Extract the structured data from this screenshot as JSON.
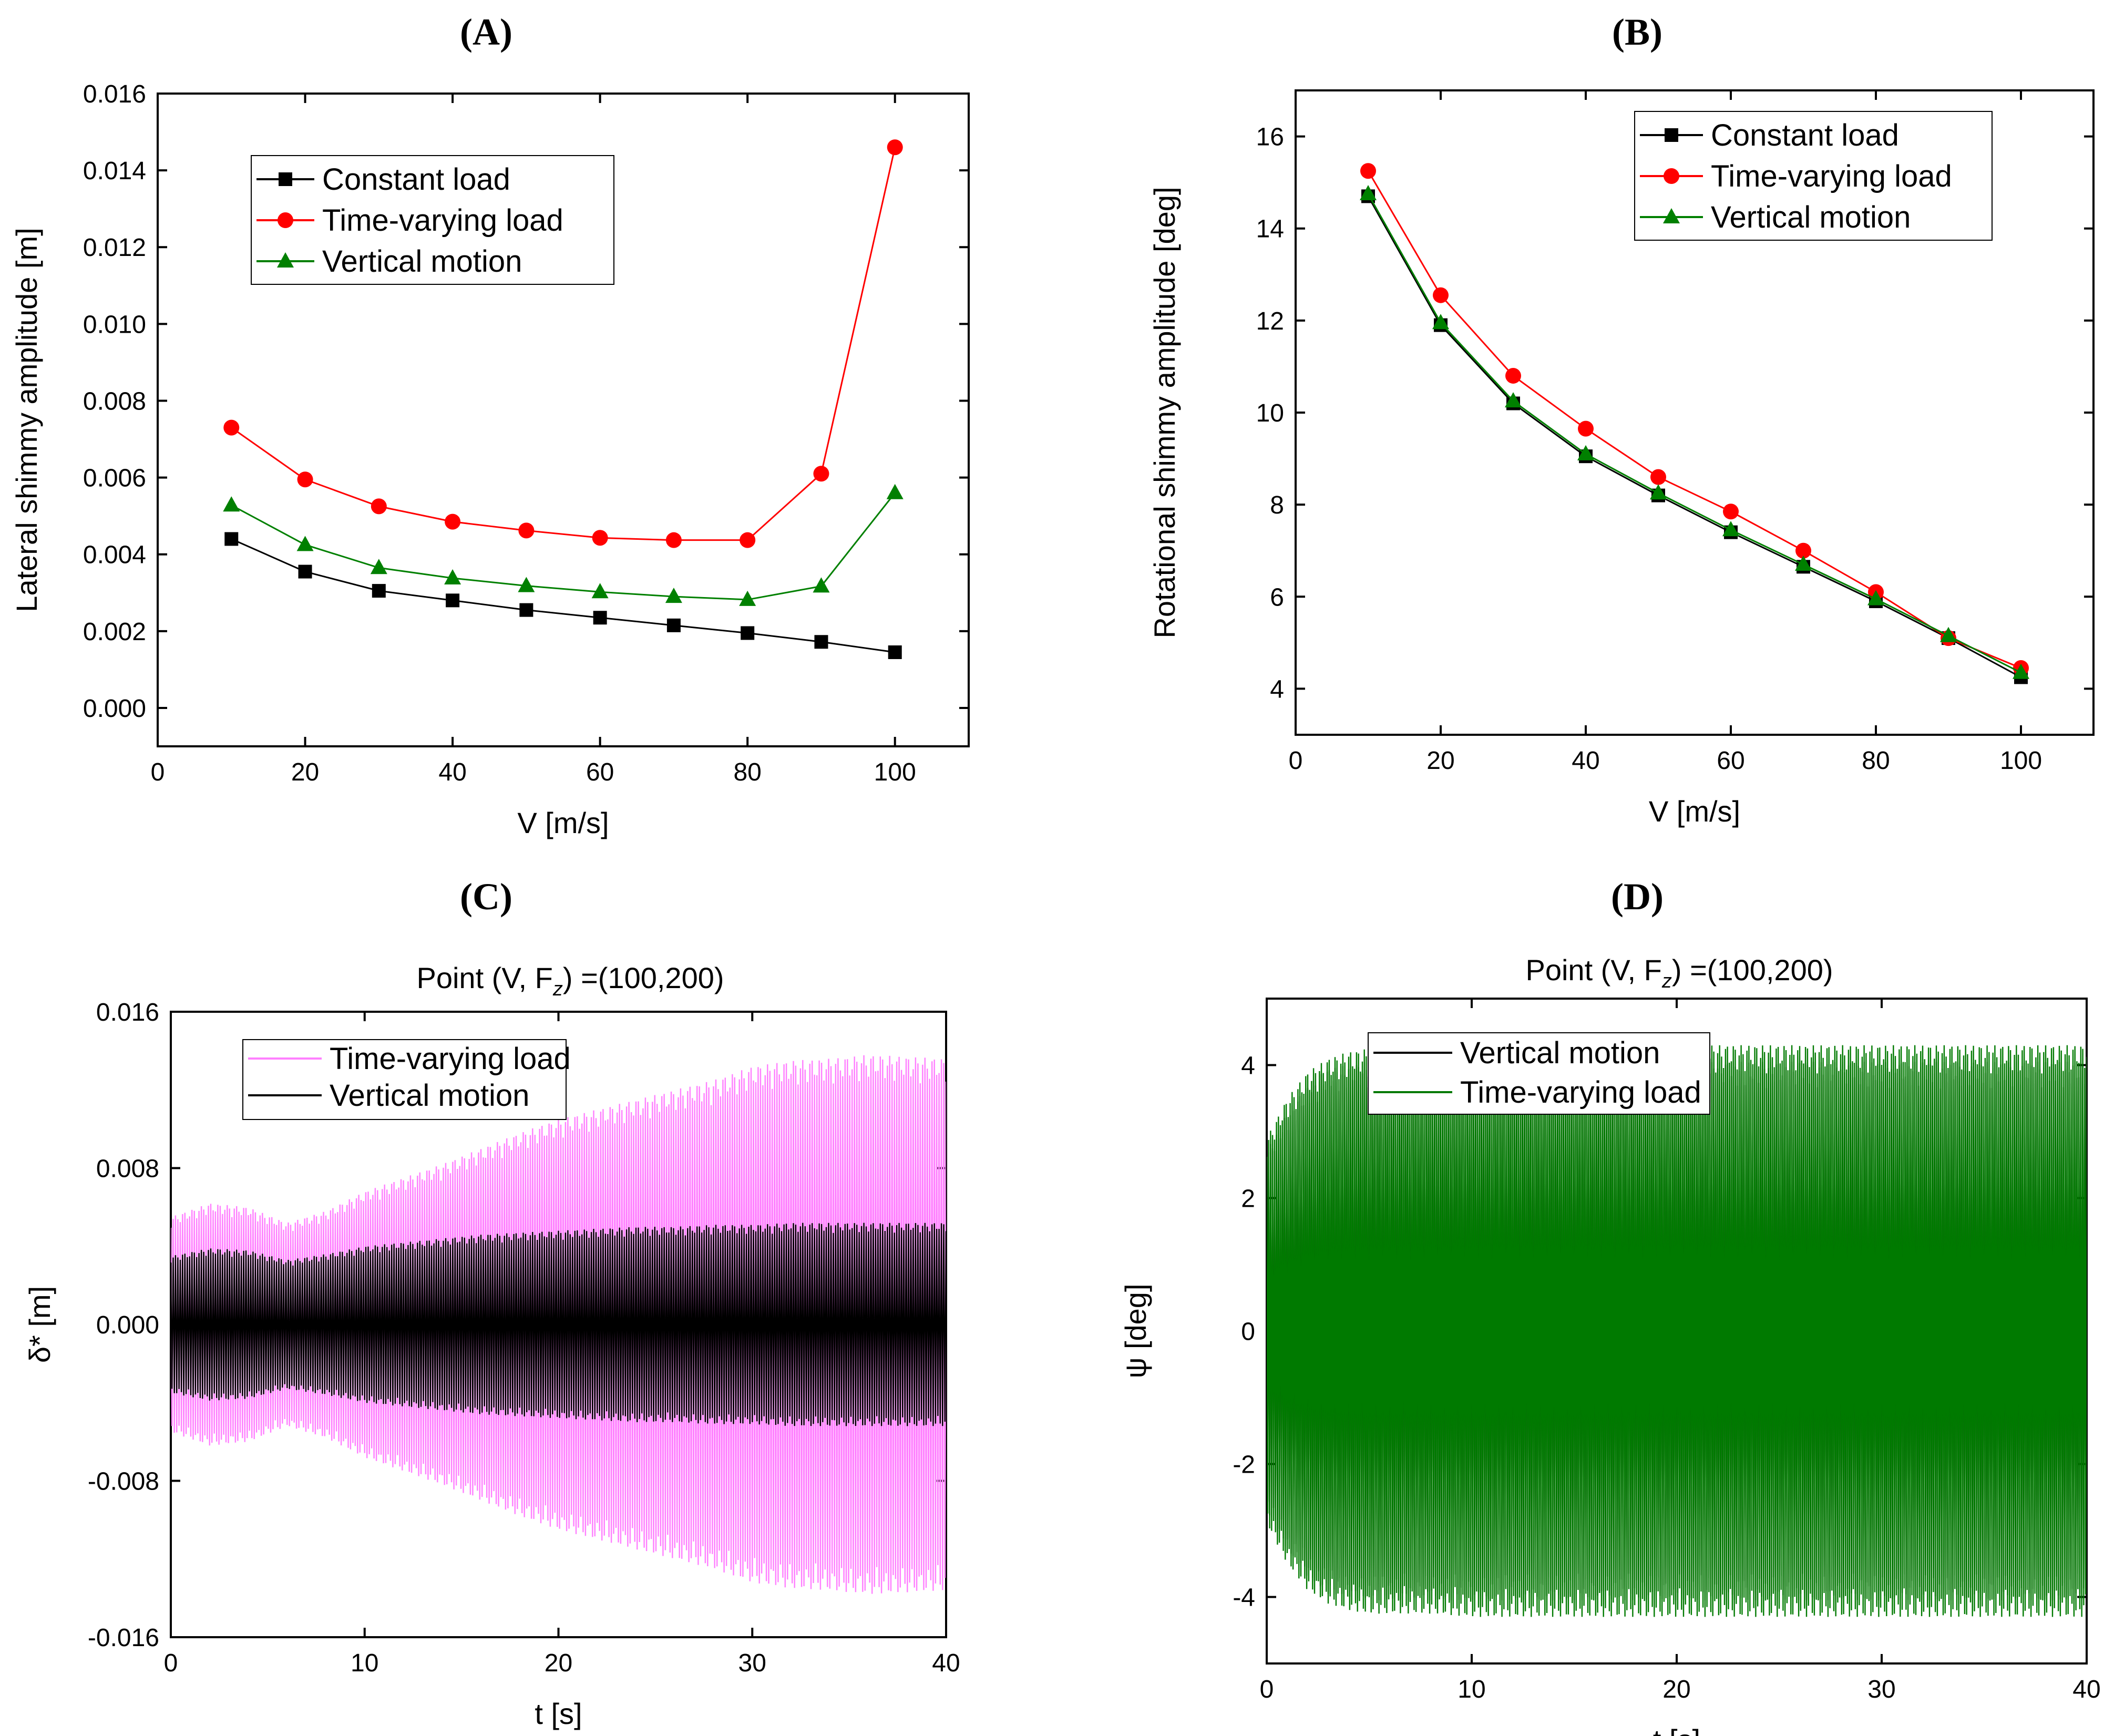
{
  "panels": [
    {
      "label": "(A)"
    },
    {
      "label": "(B)"
    },
    {
      "label": "(C)",
      "title": "Point  (V, F",
      "title_sub": "z",
      "title_tail": ") =(100,200)"
    },
    {
      "label": "(D)",
      "title": "Point  (V, F",
      "title_sub": "z",
      "title_tail": ") =(100,200)"
    }
  ],
  "colors": {
    "constant": "#000000",
    "time_varying": "#ff0000",
    "vertical": "#008000",
    "pink": "#ff80ff",
    "dark_green": "#007a00"
  },
  "chart_data": [
    {
      "type": "line",
      "xlabel": "V  [m/s]",
      "ylabel": "Lateral shimmy amplitude [m]",
      "xlim": [
        0,
        110
      ],
      "ylim": [
        -0.001,
        0.016
      ],
      "xticks": [
        0,
        20,
        40,
        60,
        80,
        100
      ],
      "yticks": [
        0,
        0.002,
        0.004,
        0.006,
        0.008,
        0.01,
        0.012,
        0.014,
        0.016
      ],
      "ytick_labels": [
        "0.000",
        "0.002",
        "0.004",
        "0.006",
        "0.008",
        "0.010",
        "0.012",
        "0.014",
        "0.016"
      ],
      "x": [
        10,
        20,
        30,
        40,
        50,
        60,
        70,
        80,
        90,
        100
      ],
      "series": [
        {
          "name": "Constant load",
          "marker": "square",
          "color": "#000000",
          "values": [
            0.0044,
            0.00355,
            0.00305,
            0.0028,
            0.00255,
            0.00235,
            0.00215,
            0.00195,
            0.00172,
            0.00145
          ]
        },
        {
          "name": "Time-varying load",
          "marker": "circle",
          "color": "#ff0000",
          "values": [
            0.0073,
            0.00595,
            0.00525,
            0.00485,
            0.00462,
            0.00443,
            0.00437,
            0.00437,
            0.0061,
            0.0146
          ]
        },
        {
          "name": "Vertical motion",
          "marker": "triangle",
          "color": "#008000",
          "values": [
            0.00528,
            0.00425,
            0.00365,
            0.00338,
            0.00318,
            0.00302,
            0.0029,
            0.00282,
            0.00317,
            0.0056
          ]
        }
      ]
    },
    {
      "type": "line",
      "xlabel": "V  [m/s]",
      "ylabel": "Rotational shimmy amplitude [deg]",
      "xlim": [
        0,
        110
      ],
      "ylim": [
        3,
        17
      ],
      "xticks": [
        0,
        20,
        40,
        60,
        80,
        100
      ],
      "yticks": [
        4,
        6,
        8,
        10,
        12,
        14,
        16
      ],
      "ytick_labels": [
        "4",
        "6",
        "8",
        "10",
        "12",
        "14",
        "16"
      ],
      "x": [
        10,
        20,
        30,
        40,
        50,
        60,
        70,
        80,
        90,
        100
      ],
      "series": [
        {
          "name": "Constant load",
          "marker": "square",
          "color": "#000000",
          "values": [
            14.7,
            11.9,
            10.2,
            9.05,
            8.2,
            7.4,
            6.65,
            5.9,
            5.1,
            4.25
          ]
        },
        {
          "name": "Time-varying load",
          "marker": "circle",
          "color": "#ff0000",
          "values": [
            15.25,
            12.55,
            10.8,
            9.65,
            8.6,
            7.85,
            7.0,
            6.1,
            5.1,
            4.45
          ]
        },
        {
          "name": "Vertical motion",
          "marker": "triangle",
          "color": "#008000",
          "values": [
            14.75,
            11.95,
            10.25,
            9.1,
            8.25,
            7.45,
            6.7,
            5.95,
            5.15,
            4.35
          ]
        }
      ]
    },
    {
      "type": "area",
      "xlabel": "t  [s]",
      "ylabel": "δ* [m]",
      "xlim": [
        0,
        40
      ],
      "ylim": [
        -0.016,
        0.016
      ],
      "xticks": [
        0,
        10,
        20,
        30,
        40
      ],
      "yticks": [
        -0.016,
        -0.008,
        0,
        0.008,
        0.016
      ],
      "ytick_labels": [
        "-0.016",
        "-0.008",
        "0.000",
        "0.008",
        "0.016"
      ],
      "series": [
        {
          "name": "Time-varying load",
          "color": "#ff80ff",
          "envelope_t": [
            0,
            2,
            4,
            6,
            8,
            10,
            12,
            14,
            16,
            18,
            20,
            22,
            24,
            26,
            28,
            30,
            32,
            34,
            36,
            38,
            40
          ],
          "envelope_amp": [
            0.0055,
            0.0062,
            0.006,
            0.0052,
            0.0058,
            0.0068,
            0.0075,
            0.0082,
            0.009,
            0.0098,
            0.0105,
            0.011,
            0.0115,
            0.012,
            0.0125,
            0.0132,
            0.0135,
            0.0136,
            0.0138,
            0.0137,
            0.0136
          ]
        },
        {
          "name": "Vertical motion",
          "color": "#000000",
          "envelope_t": [
            0,
            2,
            4,
            6,
            8,
            10,
            12,
            14,
            16,
            18,
            20,
            22,
            24,
            26,
            28,
            30,
            32,
            34,
            36,
            38,
            40
          ],
          "envelope_amp": [
            0.0035,
            0.0039,
            0.0038,
            0.0033,
            0.0036,
            0.004,
            0.0042,
            0.0044,
            0.0046,
            0.0047,
            0.0048,
            0.0049,
            0.005,
            0.005,
            0.0051,
            0.0051,
            0.0052,
            0.0052,
            0.0052,
            0.0052,
            0.0052
          ]
        }
      ]
    },
    {
      "type": "area",
      "xlabel": "t  [s]",
      "ylabel": "ψ [deg]",
      "xlim": [
        0,
        40
      ],
      "ylim": [
        -5,
        5
      ],
      "xticks": [
        0,
        10,
        20,
        30,
        40
      ],
      "yticks": [
        -4,
        -2,
        0,
        2,
        4
      ],
      "ytick_labels": [
        "-4",
        "-2",
        "0",
        "2",
        "4"
      ],
      "series": [
        {
          "name": "Vertical motion",
          "color": "#000000",
          "envelope_t": [
            0,
            1,
            2,
            3,
            4,
            5,
            6,
            8,
            10,
            15,
            20,
            25,
            30,
            35,
            40
          ],
          "envelope_amp": [
            2.7,
            3.3,
            3.7,
            3.95,
            4.0,
            4.05,
            4.05,
            4.05,
            4.05,
            4.05,
            4.05,
            4.05,
            4.05,
            4.05,
            4.05
          ]
        },
        {
          "name": "Time-varying load",
          "color": "#007a00",
          "envelope_t": [
            0,
            1,
            2,
            3,
            4,
            5,
            6,
            8,
            10,
            15,
            20,
            25,
            30,
            35,
            40
          ],
          "envelope_amp": [
            2.9,
            3.5,
            3.9,
            4.1,
            4.2,
            4.25,
            4.25,
            4.25,
            4.3,
            4.3,
            4.3,
            4.3,
            4.3,
            4.3,
            4.3
          ]
        }
      ]
    }
  ]
}
